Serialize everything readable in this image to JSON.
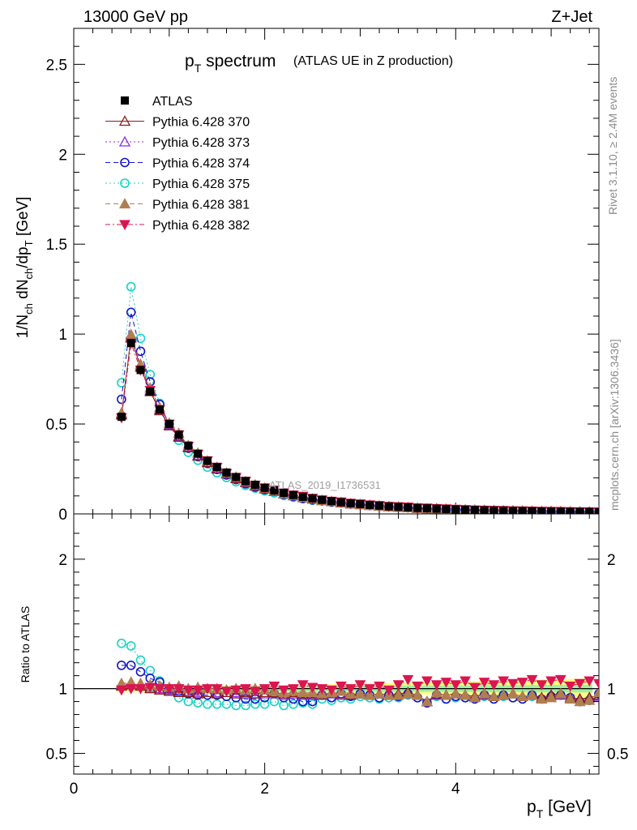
{
  "header": {
    "energy": "13000 GeV pp",
    "process": "Z+Jet"
  },
  "side_text": {
    "rivet": "Rivet 3.1.10, ≥ 2.4M events",
    "source": "mcplots.cern.ch [arXiv:1306.3436]"
  },
  "watermark": "ATLAS_2019_I1736531",
  "colors": {
    "atlas": "#000000",
    "p370": "#8b1a1a",
    "p373": "#8a2be2",
    "p374": "#1414d0",
    "p375": "#17d3c3",
    "p381": "#b07f4f",
    "p382": "#dc1450",
    "band_yellow": "#ffff80",
    "band_green": "#a0f0a0"
  },
  "chart_data": [
    {
      "type": "scatter",
      "title": "p_T spectrum",
      "title_main": "p",
      "title_sub": "T",
      "title_rest": "spectrum",
      "subtitle": "(ATLAS UE in Z production)",
      "ylabel": "1/N_ch dN_ch/dp_T [GeV]",
      "xlabel": "p_T [GeV]",
      "xlim": [
        0,
        5.5
      ],
      "ylim": [
        0,
        2.7
      ],
      "yticks": [
        0,
        0.5,
        1,
        1.5,
        2,
        2.5
      ],
      "ytick_labels": [
        "0",
        "0.5",
        "1",
        "1.5",
        "2",
        "2.5"
      ],
      "x": [
        0.5,
        0.6,
        0.7,
        0.8,
        0.9,
        1.0,
        1.1,
        1.2,
        1.3,
        1.4,
        1.5,
        1.6,
        1.7,
        1.8,
        1.9,
        2.0,
        2.1,
        2.2,
        2.3,
        2.4,
        2.5,
        2.6,
        2.7,
        2.8,
        2.9,
        3.0,
        3.1,
        3.2,
        3.3,
        3.4,
        3.5,
        3.6,
        3.7,
        3.8,
        3.9,
        4.0,
        4.1,
        4.2,
        4.3,
        4.4,
        4.5,
        4.6,
        4.7,
        4.8,
        4.9,
        5.0,
        5.1,
        5.2,
        5.3,
        5.4,
        5.5
      ],
      "atlas_values": [
        0.54,
        0.95,
        0.8,
        0.68,
        0.58,
        0.5,
        0.44,
        0.38,
        0.335,
        0.295,
        0.26,
        0.23,
        0.205,
        0.182,
        0.162,
        0.145,
        0.13,
        0.117,
        0.105,
        0.095,
        0.086,
        0.078,
        0.071,
        0.065,
        0.059,
        0.054,
        0.05,
        0.046,
        0.042,
        0.039,
        0.036,
        0.033,
        0.031,
        0.029,
        0.027,
        0.025,
        0.023,
        0.022,
        0.02,
        0.019,
        0.018,
        0.017,
        0.016,
        0.015,
        0.014,
        0.0135,
        0.0128,
        0.0121,
        0.0115,
        0.011,
        0.0104
      ],
      "legend": [
        {
          "key": "ATLAS",
          "label": "ATLAS"
        },
        {
          "key": "p370",
          "label": "Pythia 6.428 370"
        },
        {
          "key": "p373",
          "label": "Pythia 6.428 373"
        },
        {
          "key": "p374",
          "label": "Pythia 6.428 374"
        },
        {
          "key": "p375",
          "label": "Pythia 6.428 375"
        },
        {
          "key": "p381",
          "label": "Pythia 6.428 381"
        },
        {
          "key": "p382",
          "label": "Pythia 6.428 382"
        }
      ]
    },
    {
      "type": "scatter",
      "ylabel": "Ratio to ATLAS",
      "xlabel": "p_T [GeV]",
      "xlim": [
        0,
        5.5
      ],
      "ylim": [
        0.34,
        2.35
      ],
      "xticks": [
        0,
        2,
        4
      ],
      "xtick_labels": [
        "0",
        "2",
        "4"
      ],
      "yticks": [
        0.5,
        1,
        2
      ],
      "ytick_labels": [
        "0.5",
        "1",
        "2"
      ],
      "x": [
        0.5,
        0.6,
        0.7,
        0.8,
        0.9,
        1.0,
        1.1,
        1.2,
        1.3,
        1.4,
        1.5,
        1.6,
        1.7,
        1.8,
        1.9,
        2.0,
        2.1,
        2.2,
        2.3,
        2.4,
        2.5,
        2.6,
        2.7,
        2.8,
        2.9,
        3.0,
        3.1,
        3.2,
        3.3,
        3.4,
        3.5,
        3.6,
        3.7,
        3.8,
        3.9,
        4.0,
        4.1,
        4.2,
        4.3,
        4.4,
        4.5,
        4.6,
        4.7,
        4.8,
        4.9,
        5.0,
        5.1,
        5.2,
        5.3,
        5.4,
        5.5
      ],
      "series": [
        {
          "key": "p370",
          "name": "Pythia 6.428 370",
          "marker": "triangle-up-open",
          "values": [
            1.02,
            1.03,
            1.02,
            1.0,
            0.99,
            0.98,
            0.97,
            0.97,
            0.96,
            0.97,
            0.96,
            0.97,
            0.96,
            0.97,
            0.96,
            0.97,
            0.97,
            0.96,
            0.97,
            0.96,
            0.96,
            0.95,
            0.97,
            0.96,
            0.95,
            0.96,
            0.95,
            0.96,
            0.95,
            0.96,
            0.97,
            0.95,
            0.9,
            0.96,
            0.95,
            0.96,
            0.95,
            0.94,
            0.96,
            0.94,
            0.95,
            0.96,
            0.94,
            0.95,
            0.93,
            0.95,
            0.96,
            0.93,
            0.92,
            0.93,
            0.95
          ]
        },
        {
          "key": "p373",
          "name": "Pythia 6.428 373",
          "marker": "triangle-up-open",
          "values": [
            1.03,
            1.04,
            1.03,
            1.01,
            1.0,
            0.99,
            0.98,
            0.98,
            0.97,
            0.97,
            0.97,
            0.97,
            0.97,
            0.96,
            0.96,
            0.96,
            0.96,
            0.95,
            0.96,
            0.95,
            0.95,
            0.96,
            0.96,
            0.95,
            0.95,
            0.96,
            0.95,
            0.96,
            0.95,
            0.95,
            0.96,
            0.95,
            0.9,
            0.95,
            0.95,
            0.96,
            0.95,
            0.94,
            0.95,
            0.94,
            0.95,
            0.96,
            0.94,
            0.95,
            0.93,
            0.95,
            0.95,
            0.93,
            0.92,
            0.93,
            0.94
          ]
        },
        {
          "key": "p374",
          "name": "Pythia 6.428 374",
          "marker": "circle-open",
          "values": [
            1.18,
            1.18,
            1.13,
            1.08,
            1.05,
            1.0,
            0.98,
            0.96,
            0.95,
            0.95,
            0.95,
            0.94,
            0.93,
            0.92,
            0.92,
            0.93,
            0.96,
            0.93,
            0.92,
            0.9,
            0.9,
            0.95,
            0.93,
            0.96,
            0.94,
            0.96,
            0.95,
            0.93,
            0.95,
            0.94,
            0.96,
            0.93,
            0.89,
            0.95,
            0.92,
            0.94,
            0.93,
            0.92,
            0.95,
            0.92,
            0.95,
            0.93,
            0.92,
            0.95,
            0.92,
            0.94,
            0.95,
            0.93,
            0.9,
            0.91,
            0.96
          ]
        },
        {
          "key": "p375",
          "name": "Pythia 6.428 375",
          "marker": "circle-open",
          "values": [
            1.35,
            1.33,
            1.22,
            1.14,
            1.06,
            0.99,
            0.93,
            0.9,
            0.89,
            0.88,
            0.88,
            0.88,
            0.87,
            0.87,
            0.88,
            0.88,
            0.9,
            0.87,
            0.88,
            0.89,
            0.88,
            0.92,
            0.91,
            0.93,
            0.92,
            0.94,
            0.93,
            0.92,
            0.93,
            0.93,
            0.95,
            0.93,
            0.89,
            0.94,
            0.92,
            0.93,
            0.93,
            0.92,
            0.94,
            0.92,
            0.94,
            0.93,
            0.92,
            0.94,
            0.92,
            0.94,
            0.95,
            0.93,
            0.9,
            0.91,
            0.96
          ]
        },
        {
          "key": "p381",
          "name": "Pythia 6.428 381",
          "marker": "triangle-up-filled",
          "values": [
            1.04,
            1.05,
            1.04,
            1.03,
            1.02,
            1.01,
            1.02,
            1.0,
            1.01,
            1.0,
            1.0,
            0.99,
            1.0,
            0.99,
            1.0,
            0.99,
            0.98,
            0.97,
            0.98,
            0.97,
            0.97,
            0.96,
            0.97,
            0.98,
            0.96,
            0.96,
            0.95,
            0.96,
            0.95,
            0.95,
            0.96,
            0.95,
            0.9,
            0.97,
            0.95,
            0.96,
            0.95,
            0.93,
            0.96,
            0.94,
            0.95,
            0.96,
            0.94,
            0.95,
            0.92,
            0.93,
            0.96,
            0.92,
            0.9,
            0.91,
            0.97
          ]
        },
        {
          "key": "p382",
          "name": "Pythia 6.428 382",
          "marker": "triangle-down-filled",
          "values": [
            0.99,
            1.0,
            1.0,
            1.01,
            1.0,
            1.0,
            1.0,
            0.99,
            0.99,
            1.0,
            1.0,
            0.98,
            0.99,
            1.0,
            0.98,
            1.0,
            1.02,
            0.99,
            1.0,
            1.03,
            1.01,
            1.0,
            0.99,
            1.02,
            1.0,
            1.03,
            1.0,
            1.02,
            0.99,
            1.03,
            1.07,
            1.02,
            1.06,
            1.03,
            1.05,
            1.03,
            1.06,
            1.01,
            1.05,
            1.03,
            1.06,
            1.04,
            1.05,
            1.07,
            1.03,
            1.06,
            1.07,
            1.02,
            1.04,
            1.06,
            1.04
          ]
        }
      ]
    }
  ]
}
